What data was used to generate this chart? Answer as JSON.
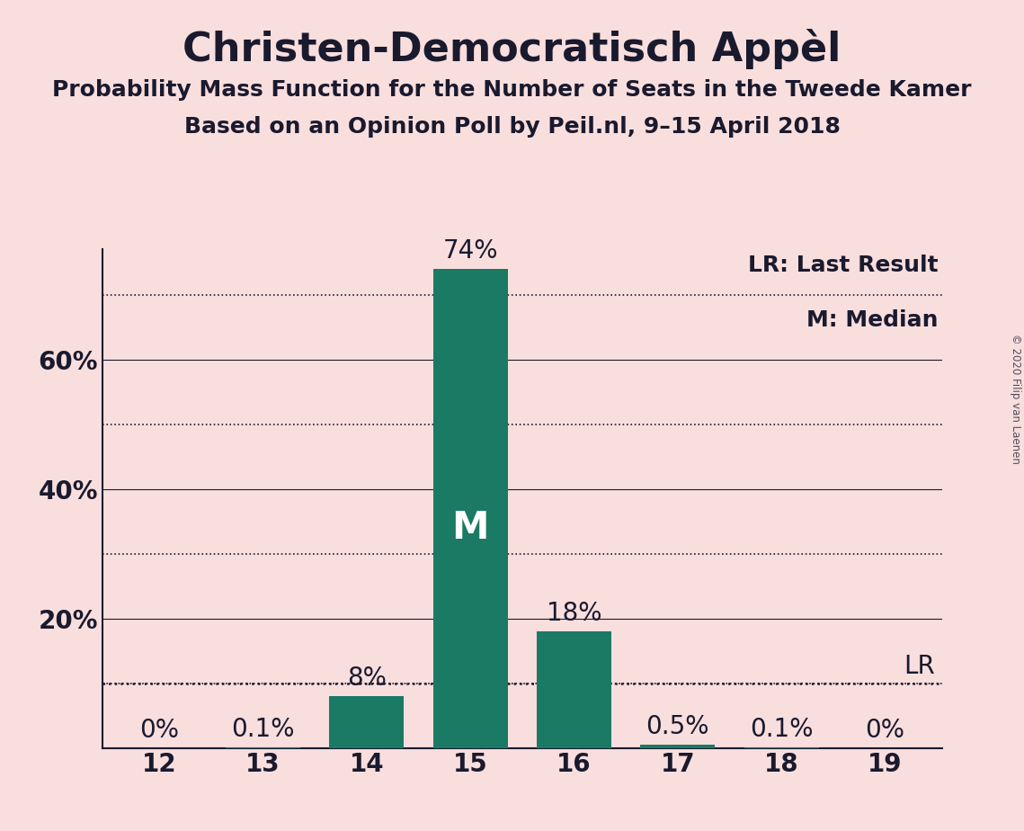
{
  "title": "Christen-Democratisch Appèl",
  "subtitle1": "Probability Mass Function for the Number of Seats in the Tweede Kamer",
  "subtitle2": "Based on an Opinion Poll by Peil.nl, 9–15 April 2018",
  "copyright": "© 2020 Filip van Laenen",
  "categories": [
    12,
    13,
    14,
    15,
    16,
    17,
    18,
    19
  ],
  "values": [
    0.0,
    0.1,
    8.0,
    74.0,
    18.0,
    0.5,
    0.1,
    0.0
  ],
  "bar_color": "#1a7a63",
  "background_color": "#f9dede",
  "median_seat": 15,
  "last_result_seat": 19,
  "last_result_value": 10.0,
  "legend_lr": "LR: Last Result",
  "legend_m": "M: Median",
  "ylim": [
    0,
    77
  ],
  "major_yticks": [
    20,
    40,
    60
  ],
  "minor_yticks": [
    10,
    30,
    50,
    70
  ],
  "title_fontsize": 32,
  "subtitle_fontsize": 18,
  "bar_label_fontsize": 20,
  "axis_label_fontsize": 20,
  "legend_fontsize": 18,
  "median_label_fontsize": 30,
  "text_color": "#1a1a2e"
}
